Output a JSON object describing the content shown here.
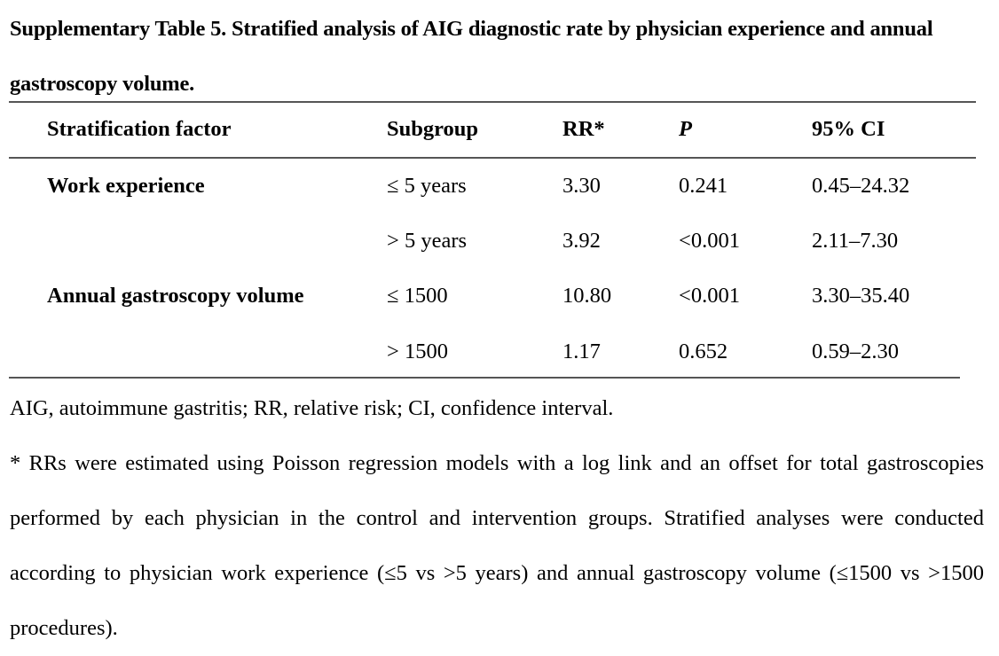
{
  "caption": "Supplementary Table 5. Stratified analysis of AIG diagnostic rate by physician experience and annual gastroscopy volume.",
  "table": {
    "headers": {
      "factor": "Stratification factor",
      "subgroup": "Subgroup",
      "rr": "RR*",
      "p": "P",
      "ci": "95% CI"
    },
    "rows": [
      {
        "factor": "Work experience",
        "subgroup": "≤ 5 years",
        "rr": "3.30",
        "p": "0.241",
        "ci": "0.45–24.32"
      },
      {
        "factor": "",
        "subgroup": "> 5 years",
        "rr": "3.92",
        "p": "<0.001",
        "ci": "2.11–7.30"
      },
      {
        "factor": "Annual gastroscopy volume",
        "subgroup": "≤ 1500",
        "rr": "10.80",
        "p": "<0.001",
        "ci": "3.30–35.40"
      },
      {
        "factor": "",
        "subgroup": "> 1500",
        "rr": "1.17",
        "p": "0.652",
        "ci": "0.59–2.30"
      }
    ]
  },
  "notes": {
    "abbreviations": "AIG, autoimmune gastritis; RR, relative risk; CI, confidence interval.",
    "footnote": "* RRs were estimated using Poisson regression models with a log link and an offset for total gastroscopies performed by each physician in the control and intervention groups. Stratified analyses were conducted according to physician work experience (≤5 vs >5 years) and annual gastroscopy volume (≤1500 vs >1500 procedures)."
  }
}
